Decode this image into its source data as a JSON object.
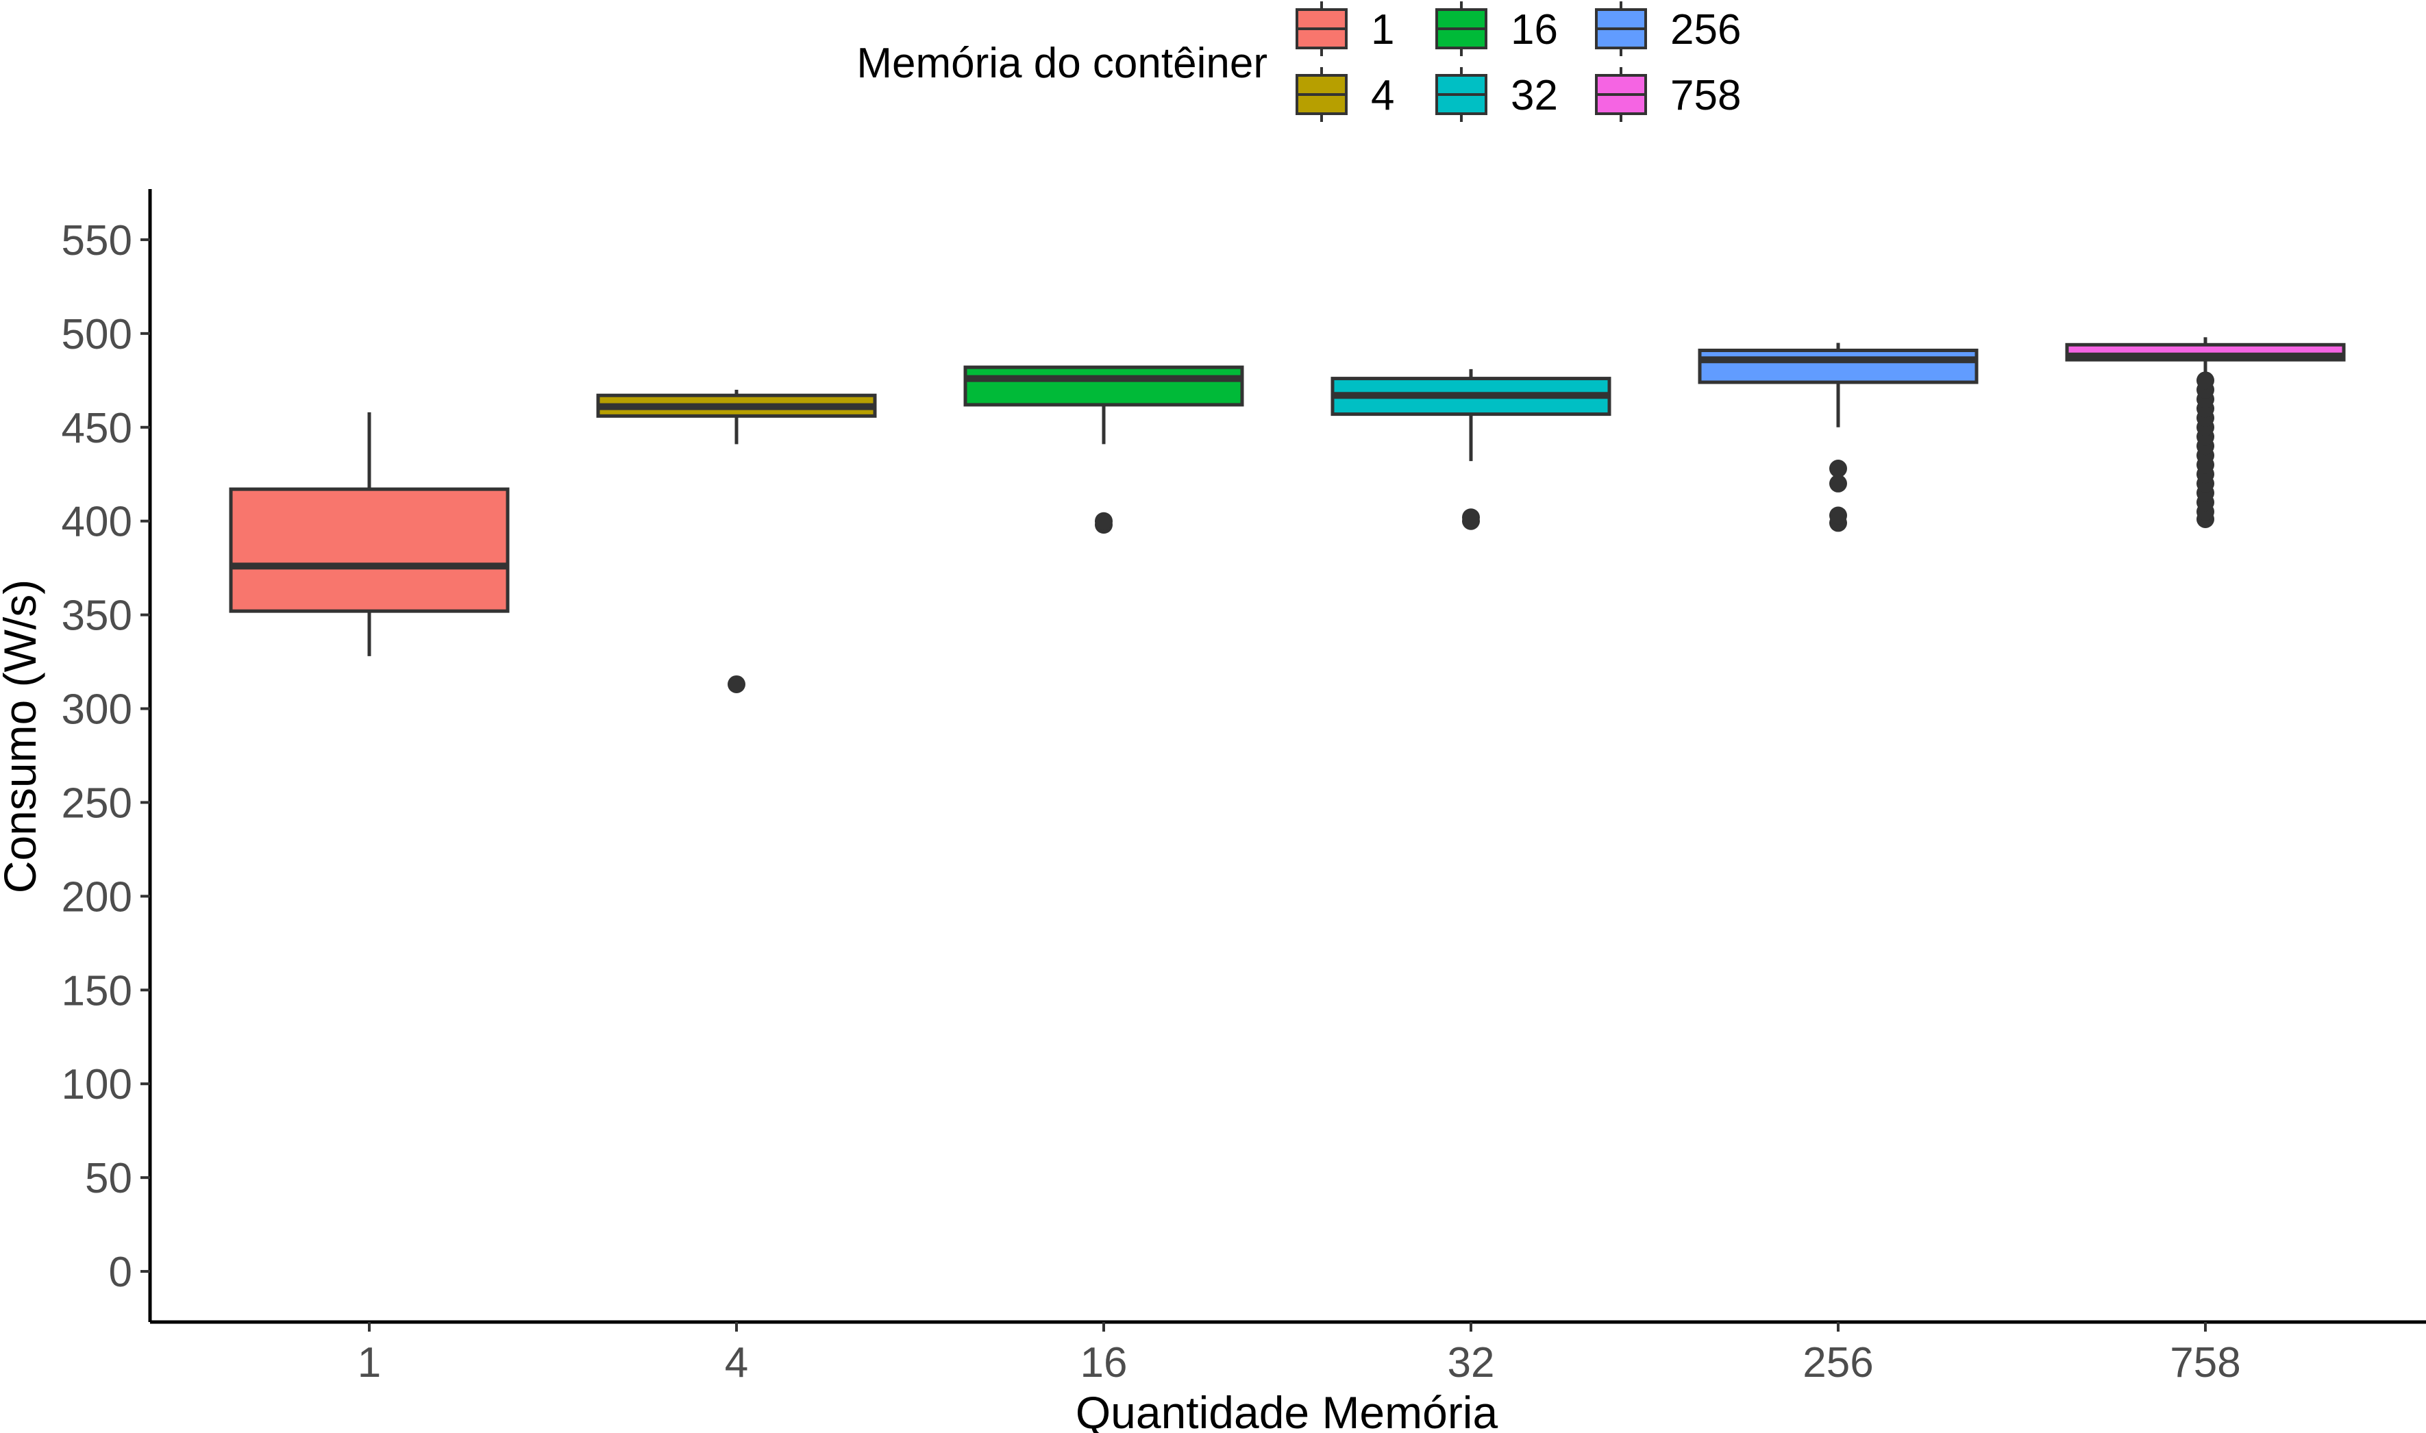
{
  "chart_data": {
    "type": "boxplot",
    "xlabel": "Quantidade Memória",
    "ylabel": "Consumo (W/s)",
    "ylim": [
      -27,
      577
    ],
    "yticks": [
      0,
      50,
      100,
      150,
      200,
      250,
      300,
      350,
      400,
      450,
      500,
      550
    ],
    "grid": false,
    "legend": {
      "title": "Memória do contêiner",
      "position": "top",
      "entries": [
        "1",
        "4",
        "16",
        "32",
        "256",
        "758"
      ]
    },
    "categories": [
      "1",
      "4",
      "16",
      "32",
      "256",
      "758"
    ],
    "series": [
      {
        "category": "1",
        "color": "#F8766D",
        "whisker_low": 328,
        "q1": 352,
        "median": 376,
        "q3": 417,
        "whisker_high": 458,
        "outliers": []
      },
      {
        "category": "4",
        "color": "#B79F00",
        "whisker_low": 441,
        "q1": 456,
        "median": 461,
        "q3": 467,
        "whisker_high": 470,
        "outliers": [
          313
        ]
      },
      {
        "category": "16",
        "color": "#00BA38",
        "whisker_low": 441,
        "q1": 462,
        "median": 476,
        "q3": 482,
        "whisker_high": 482,
        "outliers": [
          398,
          400
        ]
      },
      {
        "category": "32",
        "color": "#00BFC4",
        "whisker_low": 432,
        "q1": 457,
        "median": 467,
        "q3": 476,
        "whisker_high": 481,
        "outliers": [
          400,
          402
        ]
      },
      {
        "category": "256",
        "color": "#619CFF",
        "whisker_low": 450,
        "q1": 474,
        "median": 486,
        "q3": 491,
        "whisker_high": 495,
        "outliers": [
          399,
          403,
          420,
          428
        ]
      },
      {
        "category": "758",
        "color": "#F564E3",
        "whisker_low": 476,
        "q1": 486,
        "median": 488,
        "q3": 494,
        "whisker_high": 498,
        "outliers": [
          401,
          405,
          410,
          415,
          420,
          425,
          430,
          435,
          440,
          445,
          450,
          455,
          460,
          465,
          470,
          475
        ]
      }
    ]
  }
}
